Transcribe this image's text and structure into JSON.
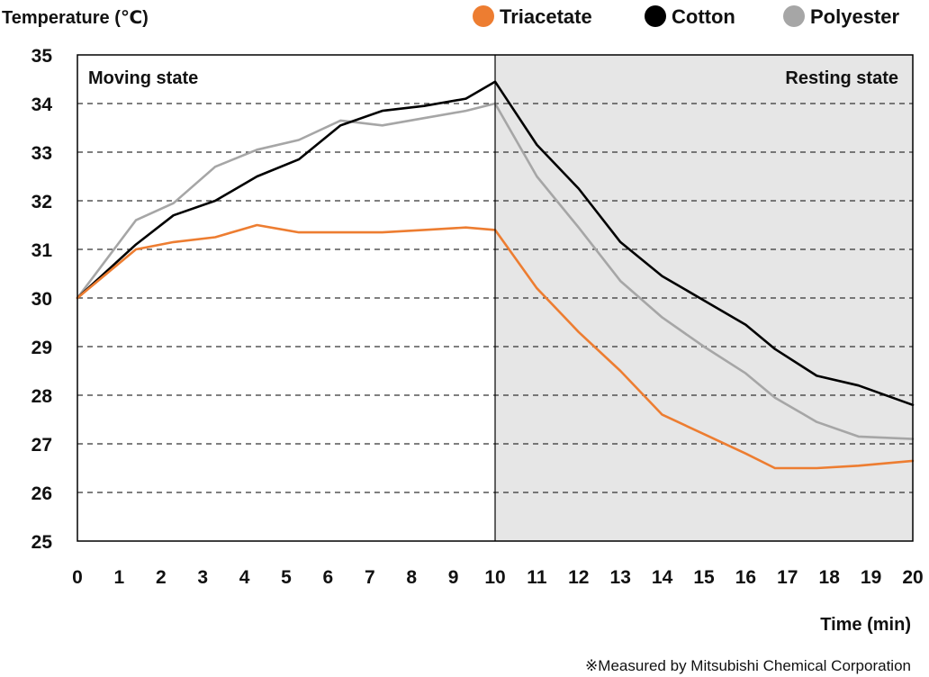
{
  "chart_data": {
    "type": "line",
    "ylabel": "Temperature (℃)",
    "xlabel": "Time (min)",
    "xlim": [
      0,
      20
    ],
    "ylim": [
      25,
      35
    ],
    "xticks": [
      0,
      1,
      2,
      3,
      4,
      5,
      6,
      7,
      8,
      9,
      10,
      11,
      12,
      13,
      14,
      15,
      16,
      17,
      18,
      19,
      20
    ],
    "yticks": [
      25,
      26,
      27,
      28,
      29,
      30,
      31,
      32,
      33,
      34,
      35
    ],
    "grid": "horizontal dashed",
    "legend_position": "top-right",
    "regions": [
      {
        "label": "Moving state",
        "x_range": [
          0,
          10
        ],
        "color": "#ffffff"
      },
      {
        "label": "Resting state",
        "x_range": [
          10,
          20
        ],
        "color": "#e6e6e6"
      }
    ],
    "series": [
      {
        "name": "Triacetate",
        "color": "#ed7d31",
        "x": [
          0,
          1.4,
          2.3,
          3.3,
          4.3,
          5.3,
          6.3,
          7.3,
          8.3,
          9.3,
          10,
          11,
          12,
          13,
          14,
          15,
          16,
          16.7,
          17.7,
          18.7,
          20
        ],
        "y": [
          30.0,
          31.0,
          31.15,
          31.25,
          31.5,
          31.35,
          31.35,
          31.35,
          31.4,
          31.45,
          31.4,
          30.2,
          29.3,
          28.5,
          27.6,
          27.2,
          26.8,
          26.5,
          26.5,
          26.55,
          26.65
        ]
      },
      {
        "name": "Cotton",
        "color": "#000000",
        "x": [
          0,
          1.4,
          2.3,
          3.3,
          4.3,
          5.3,
          6.3,
          7.3,
          8.3,
          9.3,
          10,
          11,
          12,
          13,
          14,
          15,
          16,
          16.7,
          17.7,
          18.7,
          20
        ],
        "y": [
          30.0,
          31.1,
          31.7,
          32.0,
          32.5,
          32.85,
          33.55,
          33.85,
          33.95,
          34.1,
          34.45,
          33.15,
          32.25,
          31.15,
          30.45,
          29.95,
          29.45,
          28.95,
          28.4,
          28.2,
          27.8
        ]
      },
      {
        "name": "Polyester",
        "color": "#a6a6a6",
        "x": [
          0,
          1.4,
          2.3,
          3.3,
          4.3,
          5.3,
          6.3,
          7.3,
          8.3,
          9.3,
          10,
          11,
          12,
          13,
          14,
          15,
          16,
          16.7,
          17.7,
          18.7,
          20
        ],
        "y": [
          30.0,
          31.6,
          31.95,
          32.7,
          33.05,
          33.25,
          33.65,
          33.55,
          33.7,
          33.85,
          34.0,
          32.5,
          31.45,
          30.35,
          29.6,
          29.0,
          28.45,
          27.95,
          27.45,
          27.15,
          27.1
        ]
      }
    ],
    "footnote": "※Measured by Mitsubishi Chemical Corporation"
  }
}
